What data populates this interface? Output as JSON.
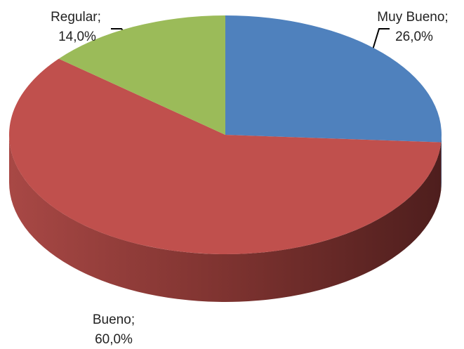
{
  "chart_data": {
    "type": "pie3d",
    "categories": [
      "Muy Bueno;",
      "Bueno;",
      "Regular;"
    ],
    "values": [
      26,
      60,
      14
    ],
    "value_labels": [
      "26,0%",
      "60,0%",
      "14,0%"
    ],
    "colors": [
      "#4f81bd",
      "#c0504d",
      "#9bbb59"
    ]
  }
}
